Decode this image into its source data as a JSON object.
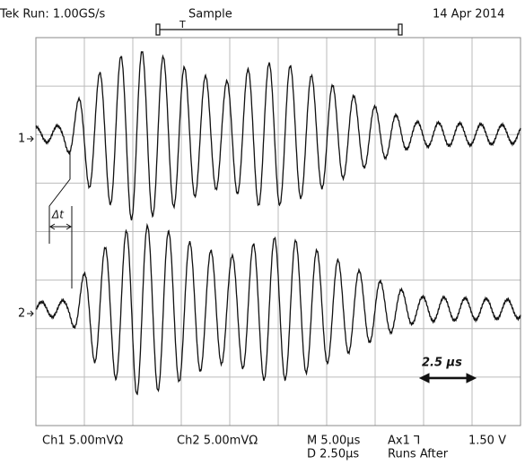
{
  "header": {
    "run": "Tek Run: 1.00GS/s",
    "mode": "Sample",
    "trigger": "T",
    "date": "14 Apr 2014"
  },
  "channels": [
    {
      "marker": "1"
    },
    {
      "marker": "2"
    }
  ],
  "annotations": {
    "delta_t": "Δt",
    "scale": "2.5 µs"
  },
  "footer": {
    "ch1": "Ch1  5.00mVΩ",
    "ch2": "Ch2  5.00mVΩ",
    "time": "M 5.00µs",
    "trigger": "Ax1 ⅂",
    "level": "1.50 V",
    "delay": "D 2.50µs",
    "state": "Runs After"
  }
}
